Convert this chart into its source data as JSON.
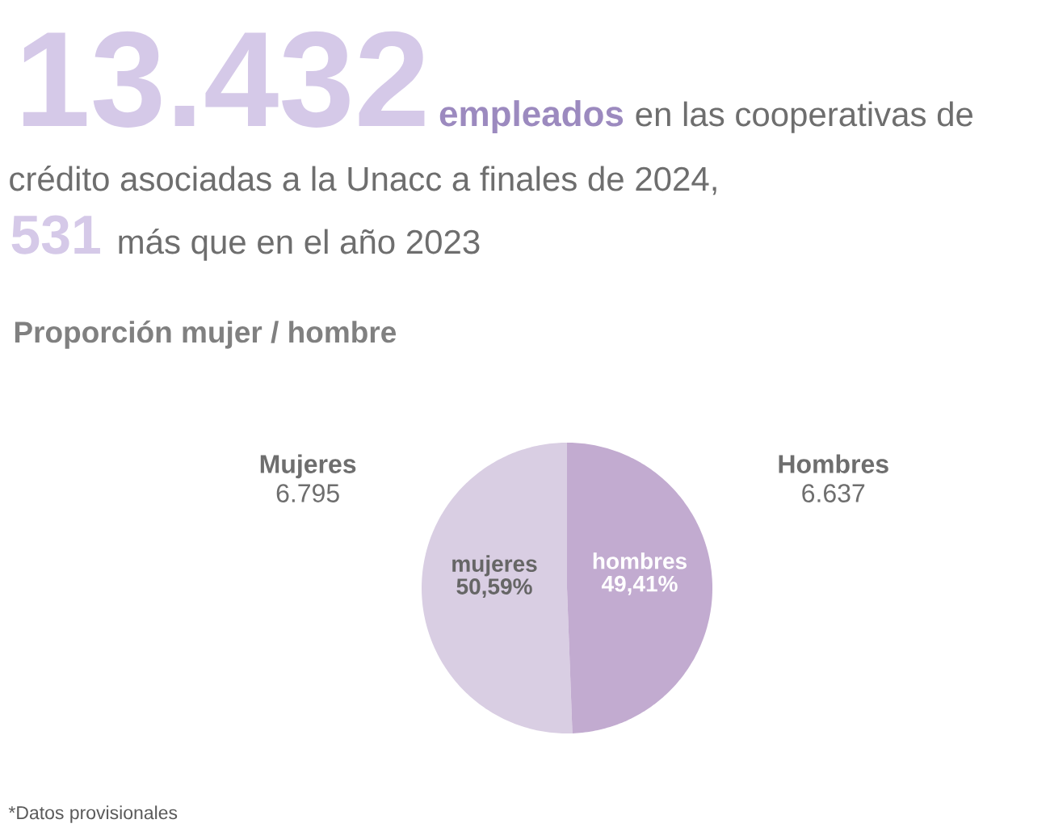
{
  "chart_data": {
    "type": "pie",
    "title": "Proporción mujer / hombre",
    "categories": [
      "Mujeres",
      "Hombres"
    ],
    "values": [
      6795,
      6637
    ],
    "value_labels": [
      "6.795",
      "6.637"
    ],
    "colors": [
      "#d9cee3",
      "#c2abd0"
    ],
    "annotations": [
      "13.432",
      "empleados",
      "en las cooperativas de",
      "crédito asociadas a la Unacc a finales de 2024,",
      "531",
      "más que en el año 2023",
      "mujeres 50,59%",
      "hombres 49,41%",
      "*Datos provisionales"
    ]
  }
}
